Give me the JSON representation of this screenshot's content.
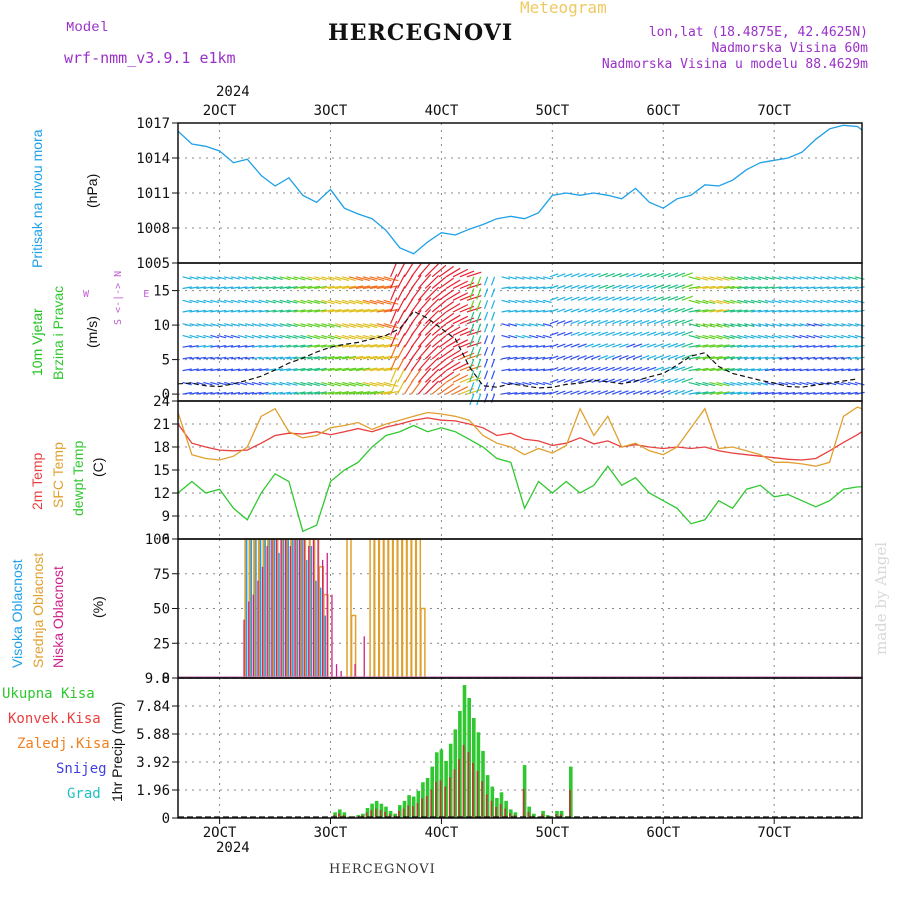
{
  "header": {
    "model_label": "Model",
    "model_value": "wrf-nmm_v3.9.1  e1km",
    "station": "HERCEGNOVI",
    "product": "Meteogram",
    "coords": "lon,lat (18.4875E, 42.4625N)",
    "altitude": "Nadmorska Visina 60m",
    "model_altitude": "Nadmorska Visina u modelu 88.4629m"
  },
  "footer": {
    "station": "HERCEGNOVI",
    "credit": "made by Angel"
  },
  "time_axis": {
    "year": "2024",
    "ticks": [
      "2OCT",
      "3OCT",
      "4OCT",
      "5OCT",
      "6OCT",
      "7OCT"
    ],
    "tick_times": [
      24,
      48,
      72,
      96,
      120,
      144
    ],
    "range": [
      15,
      163
    ]
  },
  "colors": {
    "pressure": "#1ea0e8",
    "temp2m": "#e84040",
    "sfc": "#e0a030",
    "dewpt": "#30c830",
    "high_cloud": "#1ea0e8",
    "mid_cloud": "#e0a030",
    "low_cloud": "#d0208a",
    "total_precip": "#30c830",
    "conv_precip": "#e84040",
    "frz": "#f08020",
    "snow": "#4040e0",
    "hail": "#20c0c0",
    "wind_label": "#20c020",
    "wind_label2": "#30c830"
  },
  "chart_data": [
    {
      "type": "line",
      "title": "",
      "ylabel_lines": [
        "Pritisak na nivou mora",
        "(hPa)"
      ],
      "ylim": [
        1005,
        1017
      ],
      "yticks": [
        "1005",
        "1008",
        "1011",
        "1014",
        "1017"
      ],
      "series": [
        {
          "key": "mslp",
          "x": [
            15,
            18,
            21,
            24,
            27,
            30,
            33,
            36,
            39,
            42,
            45,
            48,
            51,
            54,
            57,
            60,
            63,
            66,
            69,
            72,
            75,
            78,
            81,
            84,
            87,
            90,
            93,
            96,
            99,
            102,
            105,
            108,
            111,
            114,
            117,
            120,
            123,
            126,
            129,
            132,
            135,
            138,
            141,
            144,
            147,
            150,
            153,
            156,
            159,
            162,
            163
          ],
          "y": [
            1016.3,
            1015.2,
            1015.0,
            1014.6,
            1013.6,
            1013.9,
            1012.5,
            1011.6,
            1012.3,
            1010.8,
            1010.2,
            1011.3,
            1009.7,
            1009.2,
            1008.8,
            1007.8,
            1006.3,
            1005.8,
            1006.8,
            1007.6,
            1007.4,
            1007.9,
            1008.3,
            1008.8,
            1009.0,
            1008.8,
            1009.3,
            1010.8,
            1011.0,
            1010.8,
            1011.0,
            1010.8,
            1010.5,
            1011.4,
            1010.2,
            1009.7,
            1010.5,
            1010.8,
            1011.7,
            1011.6,
            1012.1,
            1013.0,
            1013.6,
            1013.8,
            1014.0,
            1014.5,
            1015.6,
            1016.5,
            1016.8,
            1016.7,
            1016.4
          ]
        }
      ]
    },
    {
      "type": "line",
      "ylabel_lines": [
        "10m Vjetar",
        "Brzina i Pravac",
        "(m/s)"
      ],
      "ylim": [
        -1,
        19
      ],
      "yticks": [
        "0",
        "5",
        "10",
        "15"
      ],
      "compass": {
        "n": "N",
        "s": "S",
        "e": "E",
        "w": "W"
      },
      "series": [
        {
          "key": "wind_speed",
          "x": [
            15,
            18,
            21,
            24,
            27,
            30,
            33,
            36,
            39,
            42,
            45,
            48,
            51,
            54,
            57,
            60,
            63,
            66,
            69,
            72,
            75,
            78,
            81,
            84,
            87,
            90,
            93,
            96,
            99,
            102,
            105,
            108,
            111,
            114,
            117,
            120,
            123,
            126,
            129,
            132,
            135,
            138,
            141,
            144,
            147,
            150,
            153,
            156,
            159,
            162
          ],
          "y": [
            1.5,
            1.6,
            1.2,
            1.1,
            1.5,
            2.0,
            2.6,
            3.5,
            4.5,
            5.2,
            6.1,
            6.8,
            7.2,
            7.5,
            8.0,
            8.5,
            9.5,
            12.0,
            11.0,
            9.5,
            8.0,
            4.0,
            1.2,
            1.0,
            1.5,
            1.2,
            0.9,
            1.0,
            1.4,
            1.6,
            2.0,
            1.8,
            1.5,
            1.9,
            2.5,
            3.0,
            4.2,
            5.5,
            6.0,
            4.0,
            3.0,
            2.5,
            2.0,
            1.6,
            1.1,
            1.0,
            1.3,
            1.6,
            1.9,
            2.2
          ]
        }
      ]
    },
    {
      "type": "line",
      "ylabel_lines": [
        "2m Temp",
        "SFC Temp",
        "dewpt Temp",
        "(C)"
      ],
      "ylim": [
        6,
        24
      ],
      "yticks": [
        "6",
        "9",
        "12",
        "15",
        "18",
        "21",
        "24"
      ],
      "series": [
        {
          "key": "temp2m",
          "x": [
            15,
            18,
            21,
            24,
            27,
            30,
            33,
            36,
            39,
            42,
            45,
            48,
            51,
            54,
            57,
            60,
            63,
            66,
            69,
            72,
            75,
            78,
            81,
            84,
            87,
            90,
            93,
            96,
            99,
            102,
            105,
            108,
            111,
            114,
            117,
            120,
            123,
            126,
            129,
            132,
            135,
            138,
            141,
            144,
            147,
            150,
            153,
            156,
            159,
            162,
            163
          ],
          "y": [
            21.0,
            18.5,
            18.0,
            17.6,
            17.5,
            17.6,
            18.5,
            19.5,
            19.8,
            19.7,
            20.0,
            19.6,
            20.0,
            20.4,
            20.0,
            20.6,
            21.0,
            21.5,
            21.8,
            21.5,
            21.4,
            21.0,
            20.5,
            19.5,
            19.8,
            19.0,
            18.8,
            18.2,
            18.5,
            19.2,
            18.4,
            18.8,
            18.0,
            18.3,
            18.0,
            17.8,
            18.0,
            17.8,
            18.0,
            17.5,
            17.2,
            17.0,
            16.8,
            16.6,
            16.4,
            16.3,
            16.5,
            17.5,
            18.6,
            19.6,
            20.0
          ]
        },
        {
          "key": "sfc_temp",
          "x": [
            15,
            18,
            21,
            24,
            27,
            30,
            33,
            36,
            39,
            42,
            45,
            48,
            51,
            54,
            57,
            60,
            63,
            66,
            69,
            72,
            75,
            78,
            81,
            84,
            87,
            90,
            93,
            96,
            99,
            102,
            105,
            108,
            111,
            114,
            117,
            120,
            123,
            126,
            129,
            132,
            135,
            138,
            141,
            144,
            147,
            150,
            153,
            156,
            159,
            162,
            163
          ],
          "y": [
            22.5,
            17.0,
            16.5,
            16.3,
            16.8,
            18.0,
            22.0,
            23.0,
            20.0,
            19.2,
            19.5,
            20.5,
            20.8,
            21.2,
            20.3,
            21.0,
            21.5,
            22.0,
            22.5,
            22.3,
            22.0,
            21.5,
            19.5,
            18.5,
            18.0,
            17.0,
            17.8,
            17.2,
            18.2,
            23.0,
            19.5,
            22.0,
            18.0,
            18.5,
            17.5,
            17.0,
            18.0,
            20.5,
            23.0,
            17.8,
            18.0,
            17.5,
            17.0,
            16.0,
            16.0,
            15.8,
            15.5,
            16.0,
            22.0,
            23.2,
            23.0
          ]
        },
        {
          "key": "dewpt",
          "x": [
            15,
            18,
            21,
            24,
            27,
            30,
            33,
            36,
            39,
            42,
            45,
            48,
            51,
            54,
            57,
            60,
            63,
            66,
            69,
            72,
            75,
            78,
            81,
            84,
            87,
            90,
            93,
            96,
            99,
            102,
            105,
            108,
            111,
            114,
            117,
            120,
            123,
            126,
            129,
            132,
            135,
            138,
            141,
            144,
            147,
            150,
            153,
            156,
            159,
            162,
            163
          ],
          "y": [
            12.0,
            13.5,
            12.0,
            12.5,
            10.0,
            8.5,
            12.0,
            14.5,
            13.5,
            7.0,
            7.8,
            13.5,
            15.0,
            16.0,
            18.0,
            19.5,
            20.0,
            20.8,
            20.0,
            20.5,
            20.0,
            19.0,
            18.0,
            16.5,
            16.0,
            10.0,
            13.5,
            12.0,
            13.5,
            12.0,
            13.0,
            15.5,
            13.0,
            14.0,
            12.0,
            11.0,
            10.0,
            8.0,
            8.5,
            11.0,
            10.0,
            12.5,
            13.0,
            11.5,
            11.8,
            11.0,
            10.2,
            11.0,
            12.5,
            12.8,
            12.8
          ]
        }
      ]
    },
    {
      "type": "bar",
      "ylabel_lines": [
        "Visoka Oblacnost",
        "Srednja Oblacnost",
        "Niska Oblacnost",
        "(%)"
      ],
      "ylim": [
        0,
        100
      ],
      "yticks": [
        "0",
        "25",
        "50",
        "75",
        "100"
      ],
      "series": [
        {
          "key": "high",
          "x": [
            30,
            31,
            32,
            33,
            34,
            35,
            36,
            37,
            38,
            39,
            40,
            41,
            42,
            43,
            44,
            45,
            46,
            47
          ],
          "values": [
            100,
            100,
            100,
            100,
            100,
            100,
            100,
            90,
            100,
            100,
            100,
            100,
            100,
            85,
            95,
            70,
            65,
            45
          ]
        },
        {
          "key": "mid",
          "x": [
            30,
            31,
            32,
            33,
            34,
            35,
            36,
            37,
            38,
            39,
            40,
            41,
            42,
            43,
            44,
            45,
            46,
            47,
            52,
            53,
            57,
            58,
            59,
            60,
            61,
            62,
            63,
            64,
            65,
            66,
            67,
            68
          ],
          "values": [
            100,
            100,
            100,
            100,
            100,
            100,
            100,
            100,
            100,
            100,
            100,
            100,
            100,
            100,
            100,
            100,
            80,
            60,
            100,
            45,
            100,
            100,
            100,
            100,
            100,
            100,
            100,
            100,
            100,
            100,
            100,
            50
          ]
        },
        {
          "key": "low",
          "x": [
            29,
            30,
            31,
            32,
            33,
            34,
            35,
            36,
            37,
            38,
            39,
            40,
            41,
            42,
            43,
            44,
            45,
            46,
            47,
            48,
            49,
            50,
            51,
            52,
            53,
            54,
            55,
            64
          ],
          "values": [
            42,
            55,
            60,
            70,
            80,
            95,
            100,
            100,
            100,
            100,
            95,
            100,
            100,
            100,
            95,
            100,
            100,
            85,
            90,
            60,
            10,
            5,
            0,
            0,
            10,
            0,
            30,
            0
          ]
        }
      ]
    },
    {
      "type": "bar",
      "ylabel": "1hr Precip (mm)",
      "legend": [
        "Ukupna Kisa",
        "Konvek.Kisa",
        "Zaledj.Kisa",
        "Snijeg",
        "Grad"
      ],
      "ylim": [
        0,
        9.8
      ],
      "yticks": [
        "0",
        "1.96",
        "3.92",
        "5.88",
        "7.84",
        "9.8"
      ],
      "series": [
        {
          "key": "total",
          "x": [
            30,
            31,
            33,
            34,
            35,
            36,
            37,
            38,
            39,
            40,
            41,
            42,
            43,
            44,
            45,
            46,
            47,
            48,
            49,
            50,
            51,
            52,
            53,
            54,
            55,
            56,
            57,
            58,
            59,
            60,
            61,
            62,
            63,
            64,
            65,
            66,
            67,
            68,
            69,
            70,
            71,
            72,
            73,
            74,
            75,
            76,
            77,
            78,
            79,
            80,
            81,
            82,
            83,
            84,
            85,
            86,
            87,
            88,
            89,
            90,
            91,
            92,
            93,
            94,
            95,
            96,
            97,
            98,
            99,
            100
          ],
          "values": [
            0,
            0,
            0,
            0,
            0,
            0,
            0,
            0,
            0,
            0,
            0,
            0,
            0,
            0,
            0,
            0,
            0,
            0,
            0.4,
            0.6,
            0.4,
            0.1,
            0.1,
            0.2,
            0.3,
            0.7,
            1.0,
            1.2,
            1.0,
            0.8,
            0.5,
            0.3,
            0.9,
            1.2,
            1.6,
            1.5,
            1.9,
            2.5,
            2.8,
            3.6,
            4.6,
            4.8,
            4.0,
            5.2,
            6.2,
            7.5,
            9.3,
            8.4,
            7.0,
            6.0,
            4.7,
            3.0,
            2.2,
            1.4,
            1.8,
            1.2,
            0.6,
            0.4,
            0,
            3.7,
            0.8,
            0.3,
            0.1,
            0.5,
            0.2,
            0.1,
            0.5,
            0.5,
            0,
            3.6
          ]
        }
      ]
    }
  ]
}
